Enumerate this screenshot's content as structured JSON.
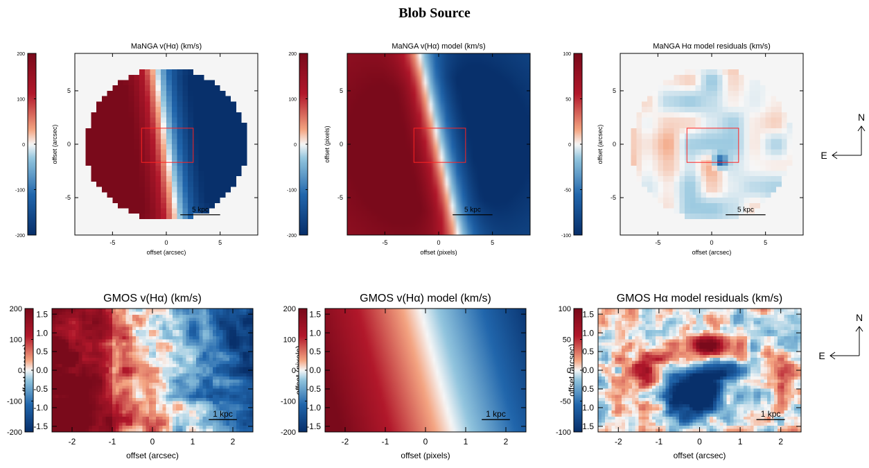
{
  "figure_title": "Blob Source",
  "compass": {
    "north": "N",
    "east": "E"
  },
  "colors": {
    "positive": "#7a0a1b",
    "neutral": "#f7f7f7",
    "negative": "#08306b",
    "box": "#ff2222"
  },
  "chart_data": [
    {
      "type": "heatmap",
      "title": "MaNGA v(Hα) (km/s)",
      "xlabel": "offset (arcsec)",
      "ylabel": "offset (arcsec)",
      "xlim": [
        -8.5,
        8.5
      ],
      "ylim": [
        -8.5,
        8.5
      ],
      "xticks": [
        -5,
        0,
        5
      ],
      "yticks": [
        -5,
        0,
        5
      ],
      "colorbar": {
        "range": [
          -200,
          200
        ],
        "ticks": [
          -200,
          -100,
          0,
          100,
          200
        ]
      },
      "field": {
        "kind": "disk_rotation",
        "v_max": 230,
        "pa_deg": 8,
        "clip_radius": 7.5
      },
      "box": {
        "x": [
          -2.3,
          2.5
        ],
        "y": [
          -1.7,
          1.5
        ]
      },
      "scalebar": {
        "label": "5 kpc",
        "x": [
          1.3,
          5.0
        ]
      }
    },
    {
      "type": "heatmap",
      "title": "MaNGA v(Hα) model (km/s)",
      "xlabel": "offset (pixels)",
      "ylabel": "offset (pixels)",
      "xlim": [
        -8.5,
        8.5
      ],
      "ylim": [
        -8.5,
        8.5
      ],
      "xticks": [
        -5,
        0,
        5
      ],
      "yticks": [
        -5,
        0,
        5
      ],
      "colorbar": {
        "range": [
          -200,
          200
        ],
        "ticks": [
          -200,
          -100,
          0,
          100,
          200
        ]
      },
      "field": {
        "kind": "disk_rotation",
        "v_max": 230,
        "pa_deg": 12,
        "clip_radius": null
      },
      "box": {
        "x": [
          -2.3,
          2.5
        ],
        "y": [
          -1.7,
          1.5
        ]
      },
      "scalebar": {
        "label": "5 kpc",
        "x": [
          1.3,
          5.0
        ]
      }
    },
    {
      "type": "heatmap",
      "title": "MaNGA Hα model residuals (km/s)",
      "xlabel": "offset (arcsec)",
      "ylabel": "offset (arcsec)",
      "xlim": [
        -8.5,
        8.5
      ],
      "ylim": [
        -8.5,
        8.5
      ],
      "xticks": [
        -5,
        0,
        5
      ],
      "yticks": [
        -5,
        0,
        5
      ],
      "colorbar": {
        "range": [
          -100,
          100
        ],
        "ticks": [
          -100,
          -50,
          0,
          50,
          100
        ]
      },
      "field": {
        "kind": "residual",
        "amplitude": 14,
        "clip_radius": 7.5
      },
      "box": {
        "x": [
          -2.3,
          2.5
        ],
        "y": [
          -1.7,
          1.5
        ]
      },
      "scalebar": {
        "label": "5 kpc",
        "x": [
          1.3,
          5.0
        ]
      }
    },
    {
      "type": "heatmap",
      "title": "GMOS v(Hα) (km/s)",
      "xlabel": "offset (arcsec)",
      "ylabel": "offset (arcsec)",
      "xlim": [
        -2.5,
        2.5
      ],
      "ylim": [
        -1.65,
        1.65
      ],
      "xticks": [
        -2,
        -1,
        0,
        1,
        2
      ],
      "yticks": [
        -1.5,
        -1.0,
        -0.5,
        0.0,
        0.5,
        1.0,
        1.5
      ],
      "colorbar": {
        "range": [
          -200,
          200
        ],
        "ticks": [
          -200,
          -100,
          0,
          100,
          200
        ]
      },
      "field": {
        "kind": "gradient_noisy",
        "v_left": 190,
        "v_right": -170,
        "tilt": 0.25,
        "noise": 55
      },
      "scalebar": {
        "label": "1 kpc",
        "x": [
          1.4,
          2.1
        ]
      }
    },
    {
      "type": "heatmap",
      "title": "GMOS v(Hα) model (km/s)",
      "xlabel": "offset (pixels)",
      "ylabel": "offset (pixels)",
      "xlim": [
        -2.5,
        2.5
      ],
      "ylim": [
        -1.65,
        1.65
      ],
      "xticks": [
        -2,
        -1,
        0,
        1,
        2
      ],
      "yticks": [
        -1.5,
        -1.0,
        -0.5,
        0.0,
        0.5,
        1.0,
        1.5
      ],
      "colorbar": {
        "range": [
          -200,
          200
        ],
        "ticks": [
          -200,
          -100,
          0,
          100,
          200
        ]
      },
      "field": {
        "kind": "gradient",
        "v_left": 200,
        "v_right": -160,
        "tilt": 0.25,
        "noise": 0
      },
      "scalebar": {
        "label": "1 kpc",
        "x": [
          1.4,
          2.1
        ]
      }
    },
    {
      "type": "heatmap",
      "title": "GMOS Hα model residuals (km/s)",
      "xlabel": "offset (arcsec)",
      "ylabel": "offset (arcsec)",
      "xlim": [
        -2.5,
        2.5
      ],
      "ylim": [
        -1.65,
        1.65
      ],
      "xticks": [
        -2,
        -1,
        0,
        1,
        2
      ],
      "yticks": [
        -1.5,
        -1.0,
        -0.5,
        0.0,
        0.5,
        1.0,
        1.5
      ],
      "colorbar": {
        "range": [
          -100,
          100
        ],
        "ticks": [
          -100,
          -50,
          0,
          50,
          100
        ]
      },
      "field": {
        "kind": "residual_blobs",
        "noise": 30
      },
      "scalebar": {
        "label": "1 kpc",
        "x": [
          1.4,
          2.1
        ]
      }
    }
  ]
}
